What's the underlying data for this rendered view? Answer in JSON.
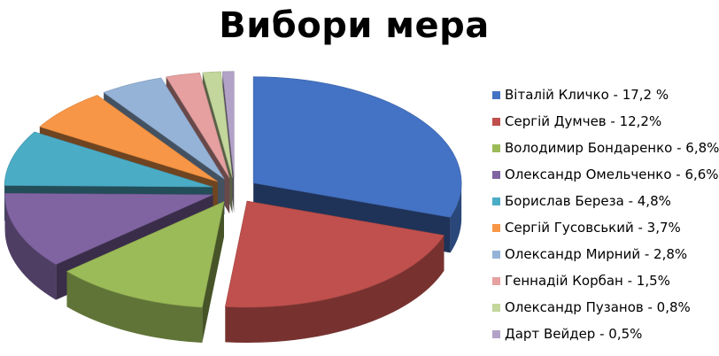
{
  "chart_data": {
    "type": "pie",
    "title": "Вибори мера",
    "legend_position": "right",
    "slices": [
      {
        "label": "Віталій Кличко - 17,2 %",
        "value": 17.2,
        "color": "#4472C4"
      },
      {
        "label": "Сергій Думчев - 12,2%",
        "value": 12.2,
        "color": "#C0504D"
      },
      {
        "label": "Володимир Бондаренко - 6,8%",
        "value": 6.8,
        "color": "#9BBB59"
      },
      {
        "label": "Олександр Омельченко - 6,6%",
        "value": 6.6,
        "color": "#8064A2"
      },
      {
        "label": "Борислав Береза - 4,8%",
        "value": 4.8,
        "color": "#4BACC6"
      },
      {
        "label": "Сергій Гусовський - 3,7%",
        "value": 3.7,
        "color": "#F79646"
      },
      {
        "label": "Олександр Мирний - 2,8%",
        "value": 2.8,
        "color": "#95B3D7"
      },
      {
        "label": "Геннадій Корбан - 1,5%",
        "value": 1.5,
        "color": "#E6A0A0"
      },
      {
        "label": "Олександр Пузанов - 0,8%",
        "value": 0.8,
        "color": "#C3D69B"
      },
      {
        "label": "Дарт Вейдер - 0,5%",
        "value": 0.5,
        "color": "#B3A2C7"
      }
    ]
  }
}
